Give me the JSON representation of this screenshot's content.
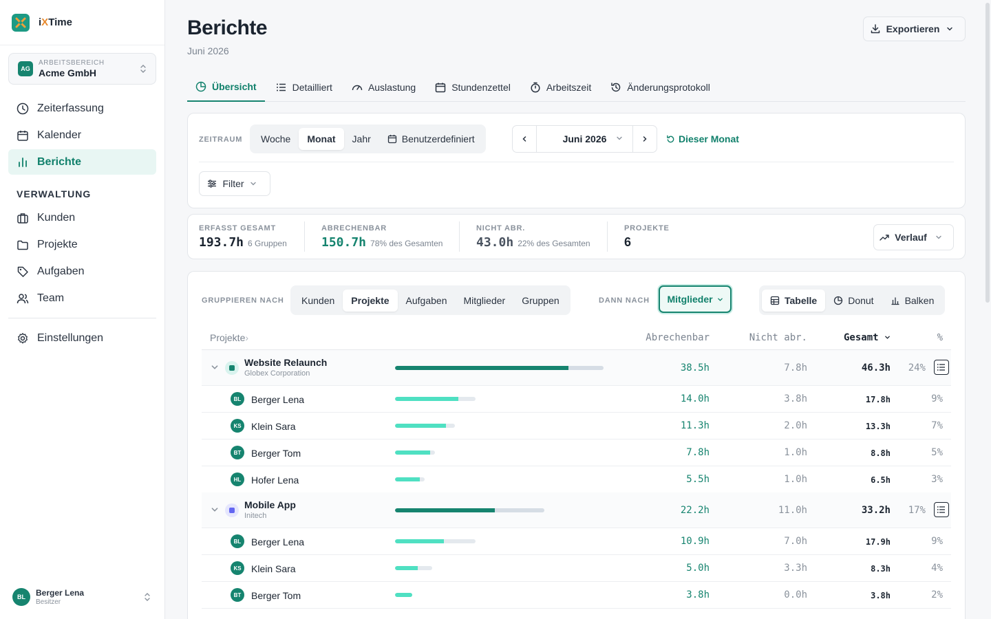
{
  "app": {
    "name_prefix": "i",
    "name_x": "X",
    "name_suffix": "Time"
  },
  "workspace": {
    "label": "ARBEITSBEREICH",
    "name": "Acme GmbH",
    "badge": "AG"
  },
  "nav": {
    "items": [
      {
        "label": "Zeiterfassung",
        "icon": "clock-icon"
      },
      {
        "label": "Kalender",
        "icon": "calendar-icon"
      },
      {
        "label": "Berichte",
        "icon": "bar-chart-icon",
        "active": true
      }
    ],
    "section": "VERWALTUNG",
    "admin_items": [
      {
        "label": "Kunden",
        "icon": "briefcase-icon"
      },
      {
        "label": "Projekte",
        "icon": "folder-icon"
      },
      {
        "label": "Aufgaben",
        "icon": "tag-icon"
      },
      {
        "label": "Team",
        "icon": "users-icon"
      }
    ],
    "settings": "Einstellungen"
  },
  "user": {
    "initials": "BL",
    "name": "Berger Lena",
    "role": "Besitzer"
  },
  "page": {
    "title": "Berichte",
    "subtitle": "Juni 2026",
    "export_label": "Exportieren"
  },
  "tabs": [
    "Übersicht",
    "Detailliert",
    "Auslastung",
    "Stundenzettel",
    "Arbeitszeit",
    "Änderungsprotokoll"
  ],
  "period": {
    "label": "ZEITRAUM",
    "options": [
      "Woche",
      "Monat",
      "Jahr",
      "Benutzerdefiniert"
    ],
    "selected": "Monat",
    "current": "Juni 2026",
    "this_month": "Dieser Monat",
    "filter": "Filter"
  },
  "stats": {
    "total_label": "ERFASST GESAMT",
    "total_value": "193.7h",
    "total_note": "6 Gruppen",
    "billable_label": "ABRECHENBAR",
    "billable_value": "150.7h",
    "billable_note": "78% des Gesamten",
    "nonbillable_label": "NICHT ABR.",
    "nonbillable_value": "43.0h",
    "nonbillable_note": "22% des Gesamten",
    "projects_label": "PROJEKTE",
    "projects_value": "6",
    "trend_label": "Verlauf"
  },
  "grouping": {
    "label": "GRUPPIEREN NACH",
    "options": [
      "Kunden",
      "Projekte",
      "Aufgaben",
      "Mitglieder",
      "Gruppen"
    ],
    "selected": "Projekte",
    "then_label": "DANN NACH",
    "then_value": "Mitglieder",
    "views": [
      "Tabelle",
      "Donut",
      "Balken"
    ],
    "selected_view": "Tabelle"
  },
  "table": {
    "columns": {
      "name": "Projekte",
      "billable": "Abrechenbar",
      "nonbillable": "Nicht abr.",
      "total": "Gesamt",
      "pct": "%"
    },
    "projects": [
      {
        "name": "Website Relaunch",
        "client": "Globex Corporation",
        "color": "#16846f",
        "icon_bg": "#d9f3ee",
        "billable": "38.5h",
        "nonbillable": "7.8h",
        "total": "46.3h",
        "pct": "24%",
        "billable_h": 38.5,
        "total_h": 46.3,
        "members": [
          {
            "initials": "BL",
            "name": "Berger Lena",
            "billable": "14.0h",
            "nonbillable": "3.8h",
            "total": "17.8h",
            "pct": "9%",
            "billable_h": 14.0,
            "total_h": 17.8
          },
          {
            "initials": "KS",
            "name": "Klein Sara",
            "billable": "11.3h",
            "nonbillable": "2.0h",
            "total": "13.3h",
            "pct": "7%",
            "billable_h": 11.3,
            "total_h": 13.3
          },
          {
            "initials": "BT",
            "name": "Berger Tom",
            "billable": "7.8h",
            "nonbillable": "1.0h",
            "total": "8.8h",
            "pct": "5%",
            "billable_h": 7.8,
            "total_h": 8.8
          },
          {
            "initials": "HL",
            "name": "Hofer Lena",
            "billable": "5.5h",
            "nonbillable": "1.0h",
            "total": "6.5h",
            "pct": "3%",
            "billable_h": 5.5,
            "total_h": 6.5
          }
        ]
      },
      {
        "name": "Mobile App",
        "client": "Initech",
        "color": "#6366f1",
        "icon_bg": "#e5e6fd",
        "billable": "22.2h",
        "nonbillable": "11.0h",
        "total": "33.2h",
        "pct": "17%",
        "billable_h": 22.2,
        "total_h": 33.2,
        "members": [
          {
            "initials": "BL",
            "name": "Berger Lena",
            "billable": "10.9h",
            "nonbillable": "7.0h",
            "total": "17.9h",
            "pct": "9%",
            "billable_h": 10.9,
            "total_h": 17.9
          },
          {
            "initials": "KS",
            "name": "Klein Sara",
            "billable": "5.0h",
            "nonbillable": "3.3h",
            "total": "8.3h",
            "pct": "4%",
            "billable_h": 5.0,
            "total_h": 8.3
          },
          {
            "initials": "BT",
            "name": "Berger Tom",
            "billable": "3.8h",
            "nonbillable": "0.0h",
            "total": "3.8h",
            "pct": "2%",
            "billable_h": 3.8,
            "total_h": 3.8
          }
        ]
      }
    ]
  }
}
